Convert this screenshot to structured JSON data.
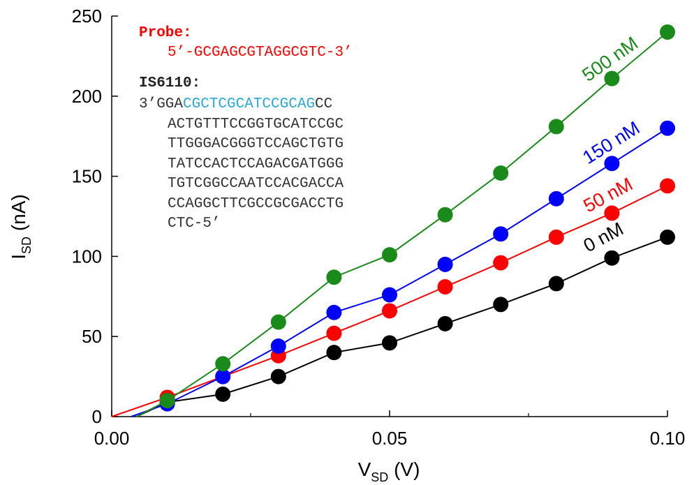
{
  "chart_data": {
    "type": "line",
    "xlabel": {
      "main": "V",
      "sub": "SD",
      "unit": " (V)"
    },
    "ylabel": {
      "main": "I",
      "sub": "SD",
      "unit": " (nA)"
    },
    "xlim": [
      0.0,
      0.1
    ],
    "ylim": [
      0,
      250
    ],
    "x_ticks": [
      0.0,
      0.05,
      0.1
    ],
    "x_tick_labels": [
      "0.00",
      "0.05",
      "0.10"
    ],
    "x_minor_ticks": [
      0.025,
      0.075
    ],
    "y_ticks": [
      0,
      50,
      100,
      150,
      200,
      250
    ],
    "y_tick_labels": [
      "0",
      "50",
      "100",
      "150",
      "200",
      "250"
    ],
    "grid": false,
    "legend": "inline labels at right end of each series",
    "x": [
      0.01,
      0.02,
      0.03,
      0.04,
      0.05,
      0.06,
      0.07,
      0.08,
      0.09,
      0.1
    ],
    "series": [
      {
        "name": "0 nM",
        "color": "#000000",
        "values": [
          9,
          14,
          25,
          40,
          46,
          58,
          70,
          83,
          99,
          112
        ],
        "fit": {
          "x0": 0.0045,
          "y0": 0
        }
      },
      {
        "name": "50 nM",
        "color": "#ff0000",
        "values": [
          12,
          25,
          38,
          52,
          66,
          81,
          96,
          112,
          127,
          144
        ],
        "fit": {
          "x0": 0.0,
          "y0": 0
        }
      },
      {
        "name": "150 nM",
        "color": "#0000ff",
        "values": [
          8,
          25,
          44,
          65,
          76,
          95,
          114,
          136,
          158,
          180
        ],
        "fit": {
          "x0": 0.0035,
          "y0": 0
        }
      },
      {
        "name": "500 nM",
        "color": "#1a8a1a",
        "values": [
          10,
          33,
          59,
          87,
          101,
          126,
          152,
          181,
          211,
          240
        ],
        "fit": {
          "x0": 0.0045,
          "y0": 0
        }
      }
    ],
    "annotation": {
      "probe_title": "Probe:",
      "probe_seq": "5’-GCGAGCGTAGGCGTC-3’",
      "target_title": "IS6110:",
      "target_line1_prefix": "3’GGA",
      "target_line1_highlight": "CGCTCGCATCCGCAG",
      "target_line1_suffix": "CC",
      "target_lines": [
        "ACTGTTTCCGGTGCATCCGC",
        "TTGGGACGGGTCCAGCTGTG",
        "TATCCACTCCAGACGATGGG",
        "TGTCGGCCAATCCACGACCA",
        "CCAGGCTTCGCCGCGACCTG",
        "CTC-5’"
      ],
      "probe_color": "#ff0000",
      "highlight_color": "#29a9d6",
      "text_color": "#333333"
    }
  }
}
